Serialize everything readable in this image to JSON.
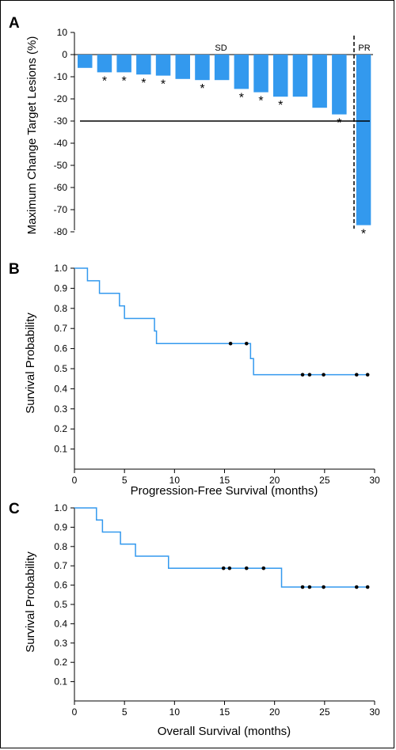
{
  "chart_data": [
    {
      "panel": "A",
      "type": "bar",
      "ylabel": "Maximum Change Target Lesions (%)",
      "xlabel": "",
      "ylim": [
        -80,
        10
      ],
      "yticks": [
        10,
        0,
        -10,
        -20,
        -30,
        -40,
        -50,
        -60,
        -70,
        -80
      ],
      "values": [
        -6,
        -8,
        -8,
        -9,
        -9.5,
        -11,
        -11.5,
        -11.5,
        -15.5,
        -17,
        -19,
        -19,
        -24,
        -27,
        -77
      ],
      "asterisks": [
        false,
        true,
        true,
        true,
        true,
        false,
        true,
        false,
        true,
        true,
        true,
        false,
        false,
        true,
        true
      ],
      "threshold": -30,
      "groups": [
        {
          "label": "SD",
          "count": 14
        },
        {
          "label": "PR",
          "count": 1
        }
      ],
      "bar_color": "#3399ee"
    },
    {
      "panel": "B",
      "type": "line",
      "xlabel": "Progression-Free Survival (months)",
      "ylabel": "Survival Probability",
      "xlim": [
        0,
        30
      ],
      "ylim": [
        0,
        1
      ],
      "xticks": [
        0,
        5,
        10,
        15,
        20,
        25,
        30
      ],
      "yticks": [
        0.1,
        0.2,
        0.3,
        0.4,
        0.5,
        0.6,
        0.7,
        0.8,
        0.9,
        1.0
      ],
      "steps": [
        {
          "x": 0,
          "y": 1.0
        },
        {
          "x": 1.3,
          "y": 0.9375
        },
        {
          "x": 2.5,
          "y": 0.875
        },
        {
          "x": 4.5,
          "y": 0.8125
        },
        {
          "x": 5.0,
          "y": 0.75
        },
        {
          "x": 8.0,
          "y": 0.6875
        },
        {
          "x": 8.2,
          "y": 0.625
        },
        {
          "x": 17.6,
          "y": 0.55
        },
        {
          "x": 17.9,
          "y": 0.47
        }
      ],
      "x_end": 29.3,
      "censored": [
        {
          "x": 15.6,
          "y": 0.625
        },
        {
          "x": 17.2,
          "y": 0.625
        },
        {
          "x": 22.8,
          "y": 0.47
        },
        {
          "x": 23.5,
          "y": 0.47
        },
        {
          "x": 24.9,
          "y": 0.47
        },
        {
          "x": 28.2,
          "y": 0.47
        },
        {
          "x": 29.3,
          "y": 0.47
        }
      ],
      "line_color": "#3399ee"
    },
    {
      "panel": "C",
      "type": "line",
      "xlabel": "Overall Survival (months)",
      "ylabel": "Survival Probability",
      "xlim": [
        0,
        30
      ],
      "ylim": [
        0,
        1
      ],
      "xticks": [
        0,
        5,
        10,
        15,
        20,
        25,
        30
      ],
      "yticks": [
        0.1,
        0.2,
        0.3,
        0.4,
        0.5,
        0.6,
        0.7,
        0.8,
        0.9,
        1.0
      ],
      "steps": [
        {
          "x": 0,
          "y": 1.0
        },
        {
          "x": 2.2,
          "y": 0.9375
        },
        {
          "x": 2.8,
          "y": 0.875
        },
        {
          "x": 4.6,
          "y": 0.8125
        },
        {
          "x": 6.1,
          "y": 0.75
        },
        {
          "x": 9.4,
          "y": 0.6875
        },
        {
          "x": 20.7,
          "y": 0.59
        }
      ],
      "x_end": 29.3,
      "censored": [
        {
          "x": 14.9,
          "y": 0.6875
        },
        {
          "x": 15.5,
          "y": 0.6875
        },
        {
          "x": 17.2,
          "y": 0.6875
        },
        {
          "x": 18.9,
          "y": 0.6875
        },
        {
          "x": 22.8,
          "y": 0.59
        },
        {
          "x": 23.5,
          "y": 0.59
        },
        {
          "x": 24.9,
          "y": 0.59
        },
        {
          "x": 28.2,
          "y": 0.59
        },
        {
          "x": 29.3,
          "y": 0.59
        }
      ],
      "line_color": "#3399ee"
    }
  ]
}
